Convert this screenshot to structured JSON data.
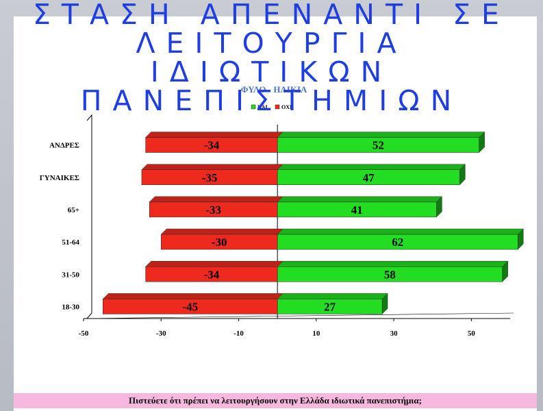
{
  "slide_title": {
    "lines": [
      "ΣΤΑΣΗ ΑΠΕΝΑΝΤΙ ΣΕ",
      "ΛΕΙΤΟΥΡΓΙΑ",
      "ΙΔΙΩΤΙΚΩΝ",
      "ΠΑΝΕΠΙΣΤΗΜΙΩΝ"
    ]
  },
  "footer": {
    "question": "Πιστεύετε ότι πρέπει να λειτουργήσουν στην Ελλάδα ιδιωτικά πανεπιστήμια;"
  },
  "colors": {
    "yes": "#22dd22",
    "no": "#ee2a1e",
    "title": "#1f3ee0",
    "subtitle": "#4a78c8",
    "footer_bg": "#f7b8e0"
  },
  "chart_data": {
    "type": "bar",
    "orientation": "horizontal",
    "title": "ΦΥΛΟ - ΗΛΙΚΙΑ",
    "categories": [
      "ΑΝΔΡΕΣ",
      "ΓΥΝΑΙΚΕΣ",
      "65+",
      "51-64",
      "31-50",
      "18-30"
    ],
    "series": [
      {
        "name": "ΝΑΙ",
        "values": [
          52,
          47,
          41,
          62,
          58,
          27
        ],
        "color": "#22dd22"
      },
      {
        "name": "ΟΧΙ",
        "values": [
          -34,
          -35,
          -33,
          -30,
          -34,
          -45
        ],
        "color": "#ee2a1e"
      }
    ],
    "xticks": [
      -50,
      -30,
      -10,
      10,
      30,
      50
    ],
    "xlim": [
      -50,
      60
    ],
    "legend_position": "top-center",
    "grid": false,
    "style": "3d"
  }
}
